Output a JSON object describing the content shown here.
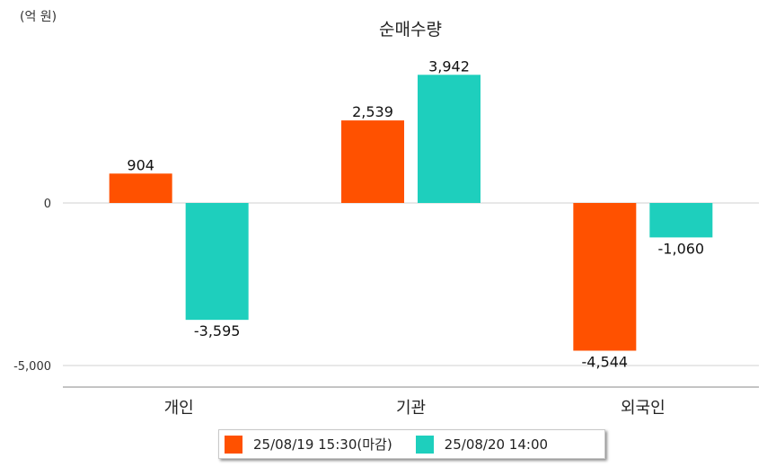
{
  "unit_label": "(억 원)",
  "chart_data": {
    "type": "bar",
    "title": "순매수량",
    "categories": [
      "개인",
      "기관",
      "외국인"
    ],
    "series": [
      {
        "name": "25/08/19 15:30(마감)",
        "color": "#ff5100",
        "values": [
          904,
          2539,
          -4544
        ],
        "labels": [
          "904",
          "2,539",
          "-4,544"
        ]
      },
      {
        "name": "25/08/20 14:00",
        "color": "#1ecfbd",
        "values": [
          -3595,
          3942,
          -1060
        ],
        "labels": [
          "-3,595",
          "3,942",
          "-1,060"
        ]
      }
    ],
    "y_ticks": [
      0,
      -5000
    ],
    "y_tick_labels": [
      "0",
      "-5,000"
    ],
    "ylim": [
      -5500,
      4000
    ],
    "grid": true,
    "legend_position": "bottom-center"
  }
}
